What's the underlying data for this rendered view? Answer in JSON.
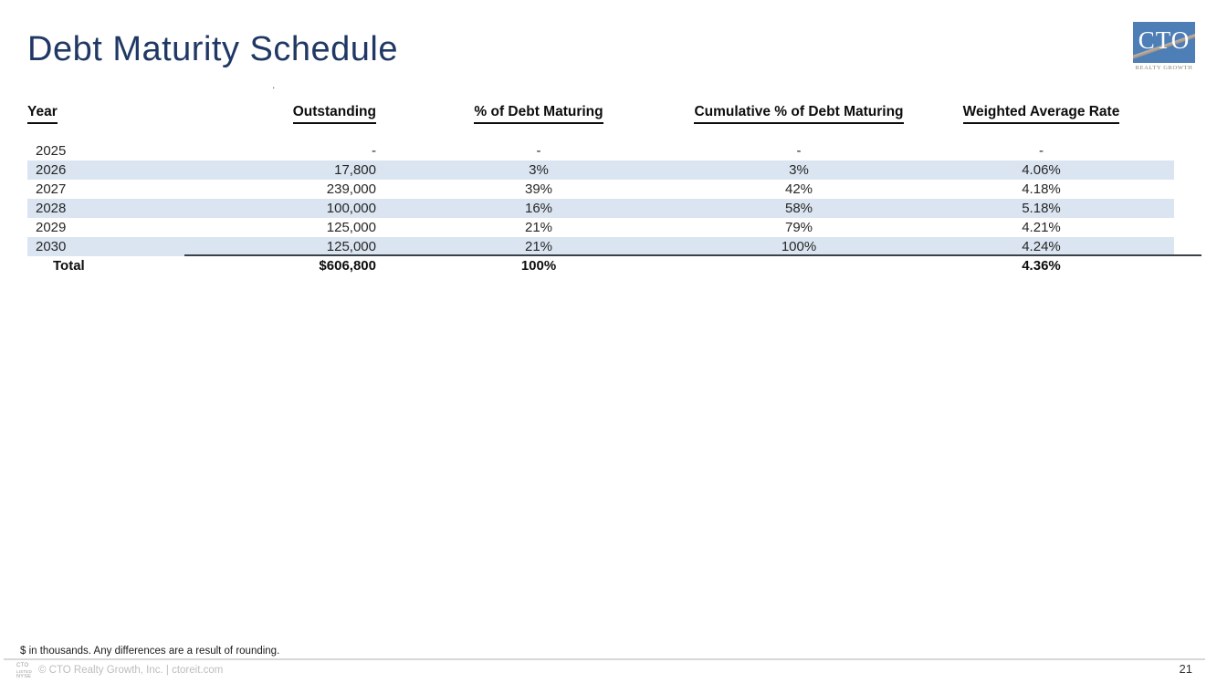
{
  "slide": {
    "title": "Debt Maturity Schedule",
    "page_number": "21",
    "stray_mark": "."
  },
  "logo": {
    "monogram": "CTO",
    "tagline": "REALTY GROWTH"
  },
  "table": {
    "headers": {
      "year": "Year",
      "outstanding": "Outstanding",
      "pct_maturing": "% of Debt Maturing",
      "cumulative_pct": "Cumulative % of Debt Maturing",
      "weighted_avg_rate": "Weighted Average Rate"
    },
    "rows": [
      {
        "year": "2025",
        "outstanding": "-",
        "pct": "-",
        "cumulative": "-",
        "rate": "-",
        "striped": false
      },
      {
        "year": "2026",
        "outstanding": "17,800",
        "pct": "3%",
        "cumulative": "3%",
        "rate": "4.06%",
        "striped": true
      },
      {
        "year": "2027",
        "outstanding": "239,000",
        "pct": "39%",
        "cumulative": "42%",
        "rate": "4.18%",
        "striped": false
      },
      {
        "year": "2028",
        "outstanding": "100,000",
        "pct": "16%",
        "cumulative": "58%",
        "rate": "5.18%",
        "striped": true
      },
      {
        "year": "2029",
        "outstanding": "125,000",
        "pct": "21%",
        "cumulative": "79%",
        "rate": "4.21%",
        "striped": false
      },
      {
        "year": "2030",
        "outstanding": "125,000",
        "pct": "21%",
        "cumulative": "100%",
        "rate": "4.24%",
        "striped": true
      }
    ],
    "total": {
      "label": "Total",
      "outstanding": "$606,800",
      "pct": "100%",
      "cumulative": "",
      "rate": "4.36%"
    }
  },
  "footnote": "$ in thousands. Any differences are a result of rounding.",
  "footer": {
    "badge_lines": [
      "CTO",
      "LISTED",
      "NYSE"
    ],
    "copyright": "© CTO Realty Growth, Inc. | ctoreit.com"
  },
  "colors": {
    "title": "#1f3864",
    "row_stripe": "#dbe5f1",
    "logo_blue": "#4d7eb6",
    "total_rule": "#3b4149"
  }
}
